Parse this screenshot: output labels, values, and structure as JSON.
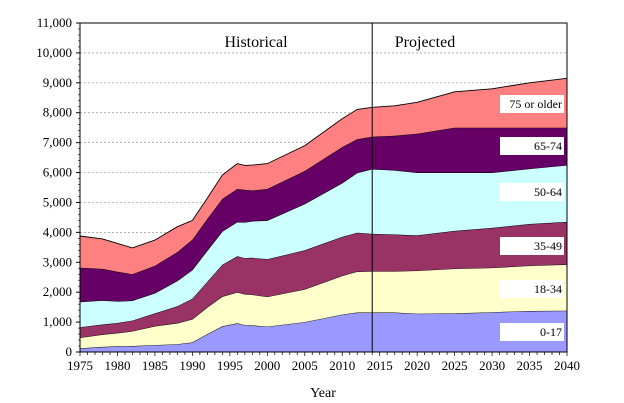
{
  "chart_data": {
    "type": "area",
    "stacked": true,
    "title": "",
    "xlabel": "Year",
    "ylabel": "",
    "xlim": [
      1975,
      2040
    ],
    "ylim": [
      0,
      11000
    ],
    "grid": true,
    "x_ticks": [
      "1975",
      "1980",
      "1985",
      "1990",
      "1995",
      "2000",
      "2005",
      "2010",
      "2015",
      "2020",
      "2025",
      "2030",
      "2035",
      "2040"
    ],
    "y_ticks": [
      "0",
      "1,000",
      "2,000",
      "3,000",
      "4,000",
      "5,000",
      "6,000",
      "7,000",
      "8,000",
      "9,000",
      "10,000",
      "11,000"
    ],
    "divider_year": 2014,
    "region_labels": {
      "left": "Historical",
      "right": "Projected"
    },
    "x": [
      1975,
      1978,
      1980,
      1982,
      1985,
      1988,
      1990,
      1992,
      1994,
      1996,
      1997,
      1998,
      2000,
      2005,
      2010,
      2012,
      2014,
      2017,
      2020,
      2025,
      2030,
      2035,
      2040
    ],
    "series": [
      {
        "name": "0-17",
        "color": "#9999ff",
        "values": [
          120,
          170,
          190,
          200,
          230,
          260,
          320,
          600,
          860,
          960,
          900,
          890,
          850,
          1000,
          1250,
          1320,
          1320,
          1320,
          1280,
          1290,
          1330,
          1370,
          1380
        ]
      },
      {
        "name": "18-34",
        "color": "#ffffcc",
        "values": [
          360,
          420,
          450,
          500,
          640,
          710,
          780,
          900,
          1000,
          1040,
          1040,
          1030,
          1000,
          1100,
          1300,
          1370,
          1380,
          1380,
          1440,
          1500,
          1490,
          1520,
          1550
        ]
      },
      {
        "name": "35-49",
        "color": "#993366",
        "values": [
          350,
          330,
          330,
          350,
          420,
          560,
          680,
          850,
          1060,
          1200,
          1200,
          1230,
          1250,
          1300,
          1300,
          1300,
          1250,
          1230,
          1180,
          1260,
          1330,
          1390,
          1420
        ]
      },
      {
        "name": "50-64",
        "color": "#ccffff",
        "values": [
          850,
          810,
          730,
          670,
          680,
          850,
          970,
          1050,
          1120,
          1150,
          1200,
          1230,
          1300,
          1550,
          1800,
          2000,
          2170,
          2150,
          2100,
          1950,
          1850,
          1850,
          1900
        ]
      },
      {
        "name": "65-74",
        "color": "#660066",
        "values": [
          1140,
          1050,
          980,
          880,
          910,
          960,
          1000,
          1050,
          1080,
          1100,
          1080,
          1020,
          1050,
          1100,
          1200,
          1120,
          1080,
          1150,
          1300,
          1500,
          1500,
          1370,
          1250
        ]
      },
      {
        "name": "75 or older",
        "color": "#ff8080",
        "values": [
          1060,
          1000,
          950,
          880,
          860,
          850,
          650,
          700,
          800,
          850,
          820,
          850,
          850,
          850,
          950,
          1000,
          980,
          1000,
          1050,
          1200,
          1300,
          1500,
          1650
        ]
      }
    ]
  }
}
